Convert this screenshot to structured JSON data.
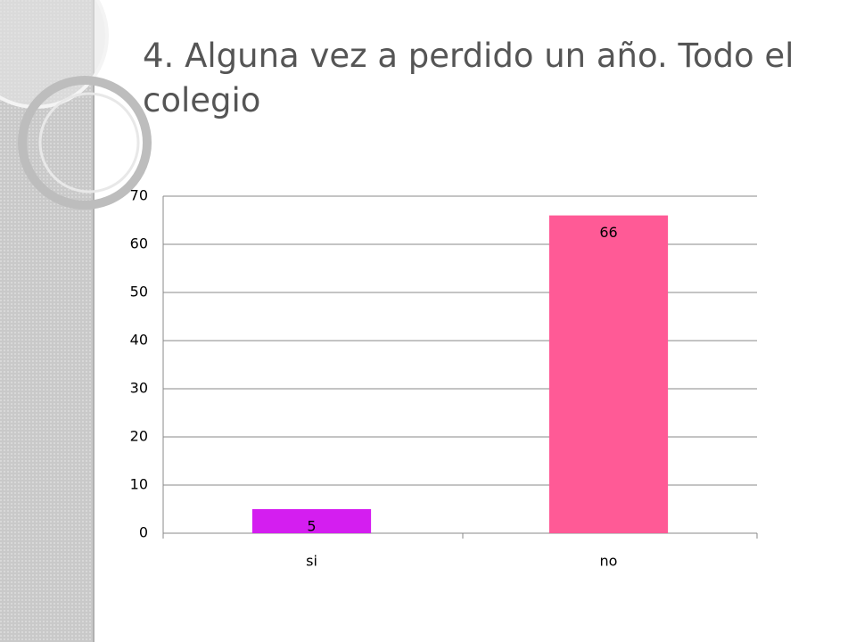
{
  "chart_data": {
    "type": "bar",
    "title": "4. Alguna vez a perdido un año. Todo el colegio",
    "categories": [
      "si",
      "no"
    ],
    "values": [
      5,
      66
    ],
    "colors": [
      "#d41ef0",
      "#ff5a96"
    ],
    "ylim": [
      0,
      70
    ],
    "yticks": [
      0,
      10,
      20,
      30,
      40,
      50,
      60,
      70
    ],
    "grid": true
  }
}
